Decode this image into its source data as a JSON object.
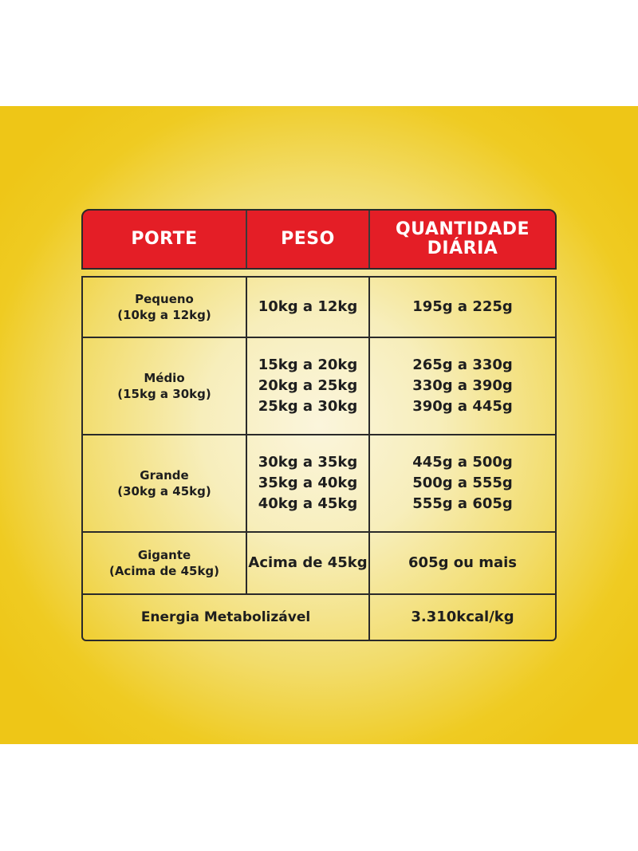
{
  "header": {
    "porte": "PORTE",
    "peso": "PESO",
    "quantidade_line1": "QUANTIDADE",
    "quantidade_line2": "DIÁRIA"
  },
  "rows": [
    {
      "porte_name": "Pequeno",
      "porte_range": "(10kg a 12kg)",
      "peso": [
        "10kg a 12kg"
      ],
      "quantidade": [
        "195g a 225g"
      ]
    },
    {
      "porte_name": "Médio",
      "porte_range": "(15kg a 30kg)",
      "peso": [
        "15kg a 20kg",
        "20kg a 25kg",
        "25kg a 30kg"
      ],
      "quantidade": [
        "265g a 330g",
        "330g a 390g",
        "390g a 445g"
      ]
    },
    {
      "porte_name": "Grande",
      "porte_range": "(30kg a 45kg)",
      "peso": [
        "30kg a 35kg",
        "35kg a 40kg",
        "40kg a 45kg"
      ],
      "quantidade": [
        "445g a 500g",
        "500g a 555g",
        "555g a 605g"
      ]
    },
    {
      "porte_name": "Gigante",
      "porte_range": "(Acima de 45kg)",
      "peso": [
        "Acima de 45kg"
      ],
      "quantidade": [
        "605g ou mais"
      ]
    }
  ],
  "energy": {
    "label": "Energia Metabolizável",
    "value": "3.310kcal/kg"
  },
  "colors": {
    "header_red": "#e41e26",
    "border": "#2a2a2a",
    "background_yellow": "#efcb22"
  }
}
